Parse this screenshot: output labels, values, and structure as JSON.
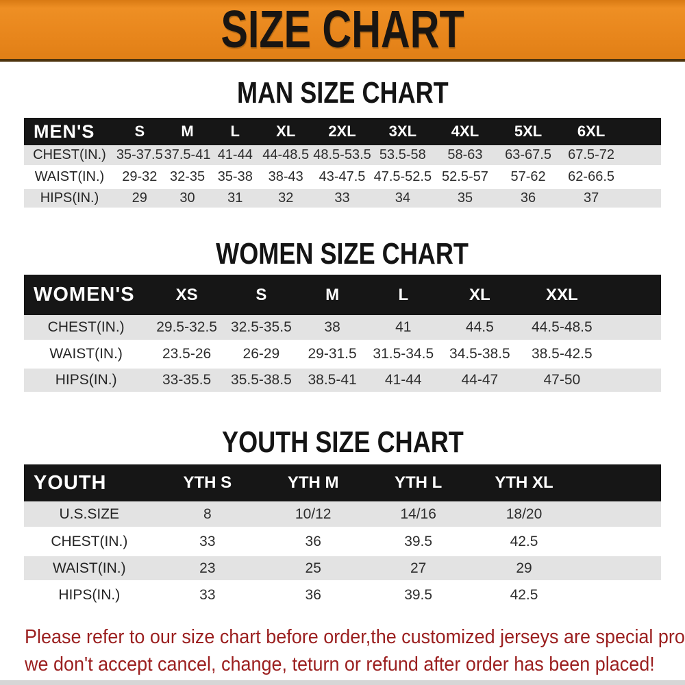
{
  "banner": {
    "title": "SIZE CHART",
    "bg_color": "#E8861C"
  },
  "sections": [
    {
      "title": "MAN SIZE CHART",
      "header_label": "MEN'S",
      "columns": [
        "S",
        "M",
        "L",
        "XL",
        "2XL",
        "3XL",
        "4XL",
        "5XL",
        "6XL"
      ],
      "rows": [
        {
          "label": "CHEST(IN.)",
          "values": [
            "35-37.5",
            "37.5-41",
            "41-44",
            "44-48.5",
            "48.5-53.5",
            "53.5-58",
            "58-63",
            "63-67.5",
            "67.5-72"
          ]
        },
        {
          "label": "WAIST(IN.)",
          "values": [
            "29-32",
            "32-35",
            "35-38",
            "38-43",
            "43-47.5",
            "47.5-52.5",
            "52.5-57",
            "57-62",
            "62-66.5"
          ]
        },
        {
          "label": "HIPS(IN.)",
          "values": [
            "29",
            "30",
            "31",
            "32",
            "33",
            "34",
            "35",
            "36",
            "37"
          ]
        }
      ]
    },
    {
      "title": "WOMEN SIZE CHART",
      "header_label": "WOMEN'S",
      "columns": [
        "XS",
        "S",
        "M",
        "L",
        "XL",
        "XXL"
      ],
      "rows": [
        {
          "label": "CHEST(IN.)",
          "values": [
            "29.5-32.5",
            "32.5-35.5",
            "38",
            "41",
            "44.5",
            "44.5-48.5"
          ]
        },
        {
          "label": "WAIST(IN.)",
          "values": [
            "23.5-26",
            "26-29",
            "29-31.5",
            "31.5-34.5",
            "34.5-38.5",
            "38.5-42.5"
          ]
        },
        {
          "label": "HIPS(IN.)",
          "values": [
            "33-35.5",
            "35.5-38.5",
            "38.5-41",
            "41-44",
            "44-47",
            "47-50"
          ]
        }
      ]
    },
    {
      "title": "YOUTH SIZE CHART",
      "header_label": "YOUTH",
      "columns": [
        "YTH S",
        "YTH M",
        "YTH L",
        "YTH XL"
      ],
      "rows": [
        {
          "label": "U.S.SIZE",
          "values": [
            "8",
            "10/12",
            "14/16",
            "18/20"
          ]
        },
        {
          "label": "CHEST(IN.)",
          "values": [
            "33",
            "36",
            "39.5",
            "42.5"
          ]
        },
        {
          "label": "WAIST(IN.)",
          "values": [
            "23",
            "25",
            "27",
            "29"
          ]
        },
        {
          "label": "HIPS(IN.)",
          "values": [
            "33",
            "36",
            "39.5",
            "42.5"
          ]
        }
      ]
    }
  ],
  "footer": {
    "line1": "Please refer to our size chart before order,the customized jerseys are special products,",
    "line2": "we don't accept cancel, change, teturn or refund after order has been placed!",
    "color": "#9B1F1F"
  }
}
